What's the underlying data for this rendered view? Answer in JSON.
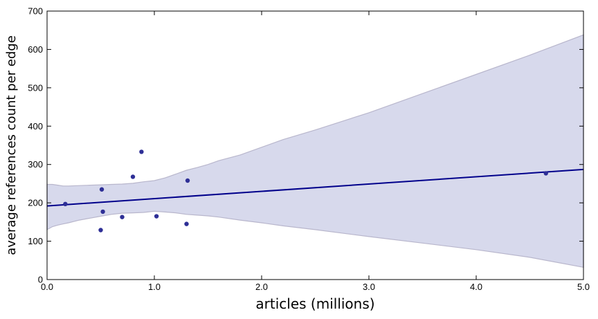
{
  "chart_data": {
    "type": "scatter",
    "title": "",
    "xlabel": "articles (millions)",
    "ylabel": "average references count per edge",
    "xlim": [
      0.0,
      5.0
    ],
    "ylim": [
      0,
      700
    ],
    "xticks": [
      0.0,
      1.0,
      2.0,
      3.0,
      4.0,
      5.0
    ],
    "xtick_labels": [
      "0.0",
      "1.0",
      "2.0",
      "3.0",
      "4.0",
      "5.0"
    ],
    "yticks": [
      0,
      100,
      200,
      300,
      400,
      500,
      600,
      700
    ],
    "ytick_labels": [
      "0",
      "100",
      "200",
      "300",
      "400",
      "500",
      "600",
      "700"
    ],
    "grid": false,
    "legend": "none",
    "series": [
      {
        "type": "scatter",
        "x": [
          0.17,
          0.5,
          0.51,
          0.52,
          0.7,
          0.8,
          0.88,
          1.02,
          1.3,
          1.31,
          4.65
        ],
        "y": [
          197,
          129,
          235,
          177,
          163,
          268,
          333,
          165,
          145,
          258,
          277
        ]
      }
    ],
    "regression_line": {
      "x": [
        0.0,
        5.0
      ],
      "y": [
        192,
        287
      ]
    },
    "confidence_band": {
      "x": [
        0.0,
        0.05,
        0.1,
        0.15,
        0.2,
        0.3,
        0.4,
        0.5,
        0.6,
        0.7,
        0.8,
        0.9,
        1.0,
        1.1,
        1.2,
        1.3,
        1.4,
        1.5,
        1.6,
        1.8,
        2.0,
        2.2,
        2.5,
        3.0,
        3.5,
        4.0,
        4.5,
        5.0
      ],
      "upper": [
        248,
        248,
        246,
        244,
        244,
        245,
        246,
        247,
        248,
        249,
        251,
        255,
        258,
        265,
        275,
        285,
        292,
        300,
        310,
        325,
        345,
        365,
        390,
        435,
        485,
        535,
        585,
        638
      ],
      "lower": [
        130,
        138,
        142,
        145,
        148,
        155,
        160,
        165,
        170,
        173,
        174,
        175,
        178,
        176,
        174,
        170,
        168,
        166,
        163,
        155,
        148,
        140,
        130,
        112,
        95,
        78,
        58,
        32
      ]
    },
    "colors": {
      "points": "#2e2f96",
      "line": "#00008b",
      "band_fill": "#d7d9ec",
      "band_edge": "#b8b6cc",
      "axes": "#000000"
    }
  }
}
